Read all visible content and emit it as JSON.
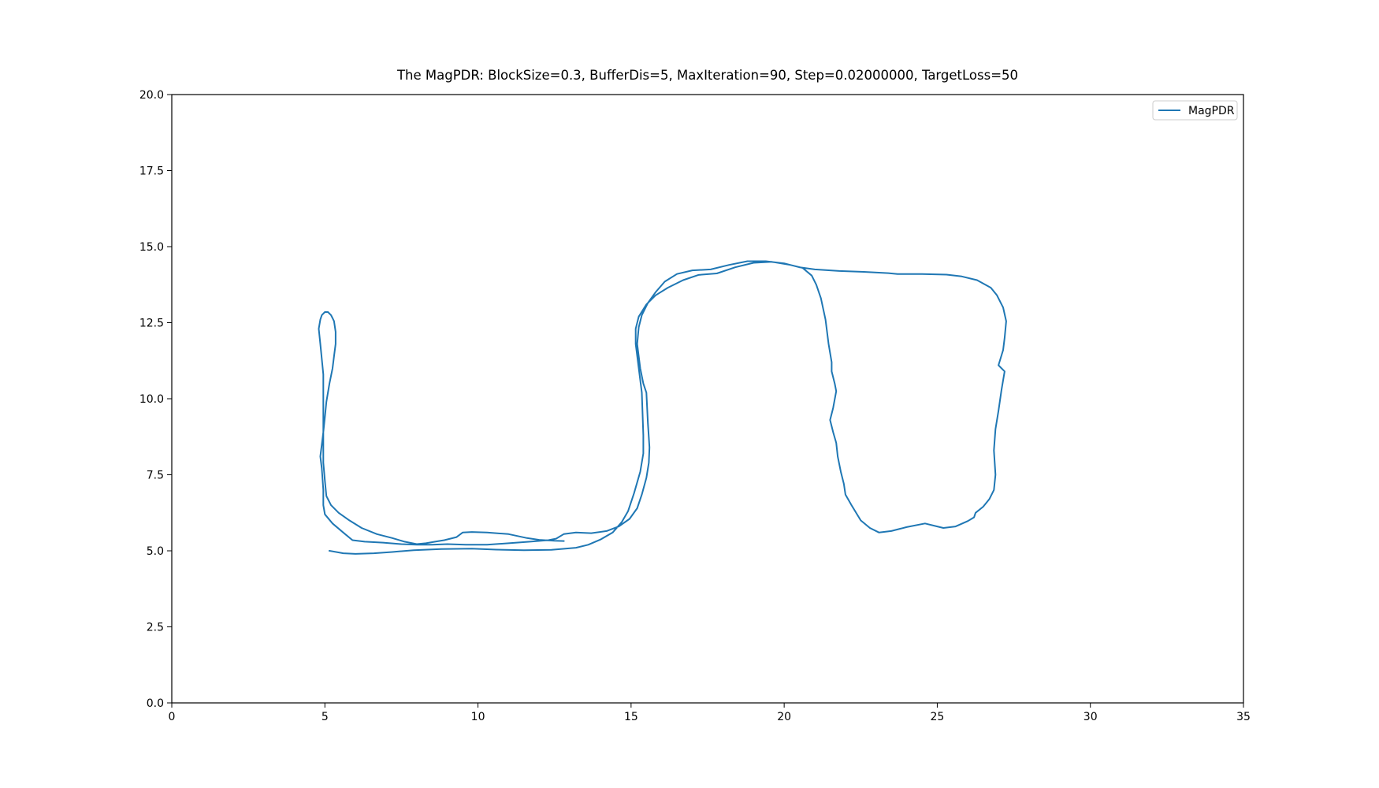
{
  "chart_data": {
    "type": "line",
    "title": "The MagPDR: BlockSize=0.3, BufferDis=5, MaxIteration=90, Step=0.02000000, TargetLoss=50",
    "xlabel": "",
    "ylabel": "",
    "xlim": [
      0,
      35
    ],
    "ylim": [
      0,
      20
    ],
    "xticks": [
      "0",
      "5",
      "10",
      "15",
      "20",
      "25",
      "30",
      "35"
    ],
    "yticks": [
      "0.0",
      "2.5",
      "5.0",
      "7.5",
      "10.0",
      "12.5",
      "15.0",
      "17.5",
      "20.0"
    ],
    "grid": false,
    "legend_position": "top-right",
    "series": [
      {
        "name": "MagPDR",
        "color": "#1f77b4",
        "points": [
          [
            5.15,
            5.0
          ],
          [
            5.6,
            4.92
          ],
          [
            6.0,
            4.9
          ],
          [
            6.6,
            4.92
          ],
          [
            7.2,
            4.96
          ],
          [
            7.9,
            5.02
          ],
          [
            8.8,
            5.06
          ],
          [
            9.8,
            5.07
          ],
          [
            10.6,
            5.04
          ],
          [
            11.5,
            5.02
          ],
          [
            12.4,
            5.03
          ],
          [
            13.2,
            5.1
          ],
          [
            13.6,
            5.2
          ],
          [
            14.0,
            5.37
          ],
          [
            14.4,
            5.6
          ],
          [
            14.7,
            5.95
          ],
          [
            14.9,
            6.3
          ],
          [
            15.1,
            6.9
          ],
          [
            15.3,
            7.6
          ],
          [
            15.4,
            8.2
          ],
          [
            15.4,
            8.8
          ],
          [
            15.35,
            10.2
          ],
          [
            15.25,
            11.0
          ],
          [
            15.15,
            11.8
          ],
          [
            15.15,
            12.3
          ],
          [
            15.25,
            12.7
          ],
          [
            15.5,
            13.1
          ],
          [
            15.8,
            13.4
          ],
          [
            16.2,
            13.65
          ],
          [
            16.7,
            13.9
          ],
          [
            17.2,
            14.07
          ],
          [
            17.8,
            14.12
          ],
          [
            18.4,
            14.32
          ],
          [
            19.0,
            14.47
          ],
          [
            19.6,
            14.5
          ],
          [
            20.2,
            14.4
          ],
          [
            20.6,
            14.3
          ],
          [
            20.9,
            14.05
          ],
          [
            21.05,
            13.75
          ],
          [
            21.2,
            13.3
          ],
          [
            21.35,
            12.6
          ],
          [
            21.45,
            11.8
          ],
          [
            21.55,
            11.2
          ],
          [
            21.55,
            10.9
          ],
          [
            21.65,
            10.5
          ],
          [
            21.7,
            10.25
          ],
          [
            21.6,
            9.7
          ],
          [
            21.5,
            9.3
          ],
          [
            21.6,
            8.9
          ],
          [
            21.7,
            8.55
          ],
          [
            21.75,
            8.1
          ],
          [
            21.85,
            7.6
          ],
          [
            21.95,
            7.2
          ],
          [
            22.0,
            6.85
          ],
          [
            22.2,
            6.5
          ],
          [
            22.5,
            6.0
          ],
          [
            22.8,
            5.75
          ],
          [
            23.1,
            5.6
          ],
          [
            23.5,
            5.65
          ],
          [
            24.0,
            5.78
          ],
          [
            24.6,
            5.9
          ],
          [
            25.0,
            5.8
          ],
          [
            25.2,
            5.75
          ],
          [
            25.6,
            5.8
          ],
          [
            26.0,
            5.98
          ],
          [
            26.2,
            6.1
          ],
          [
            26.25,
            6.25
          ],
          [
            26.5,
            6.45
          ],
          [
            26.7,
            6.7
          ],
          [
            26.85,
            7.0
          ],
          [
            26.9,
            7.5
          ],
          [
            26.85,
            8.3
          ],
          [
            26.9,
            9.0
          ],
          [
            27.0,
            9.6
          ],
          [
            27.1,
            10.3
          ],
          [
            27.2,
            10.9
          ],
          [
            27.0,
            11.1
          ],
          [
            27.15,
            11.6
          ],
          [
            27.2,
            12.0
          ],
          [
            27.25,
            12.55
          ],
          [
            27.15,
            13.0
          ],
          [
            26.95,
            13.4
          ],
          [
            26.75,
            13.65
          ],
          [
            26.3,
            13.9
          ],
          [
            25.8,
            14.02
          ],
          [
            25.3,
            14.08
          ],
          [
            24.5,
            14.1
          ],
          [
            23.7,
            14.1
          ],
          [
            23.4,
            14.13
          ],
          [
            22.6,
            14.17
          ],
          [
            21.8,
            14.2
          ],
          [
            21.0,
            14.25
          ],
          [
            20.5,
            14.32
          ],
          [
            20.0,
            14.45
          ],
          [
            19.4,
            14.52
          ],
          [
            18.8,
            14.52
          ],
          [
            18.2,
            14.4
          ],
          [
            17.6,
            14.25
          ],
          [
            17.0,
            14.22
          ],
          [
            16.5,
            14.1
          ],
          [
            16.1,
            13.85
          ],
          [
            15.8,
            13.5
          ],
          [
            15.55,
            13.15
          ],
          [
            15.35,
            12.75
          ],
          [
            15.25,
            12.35
          ],
          [
            15.2,
            11.8
          ],
          [
            15.3,
            11.0
          ],
          [
            15.4,
            10.5
          ],
          [
            15.5,
            10.2
          ],
          [
            15.55,
            9.2
          ],
          [
            15.6,
            8.4
          ],
          [
            15.58,
            7.9
          ],
          [
            15.5,
            7.4
          ],
          [
            15.35,
            6.85
          ],
          [
            15.2,
            6.4
          ],
          [
            14.95,
            6.05
          ],
          [
            14.6,
            5.8
          ],
          [
            14.2,
            5.65
          ],
          [
            13.7,
            5.58
          ],
          [
            13.2,
            5.6
          ],
          [
            12.8,
            5.55
          ],
          [
            12.55,
            5.4
          ],
          [
            12.3,
            5.35
          ],
          [
            11.7,
            5.3
          ],
          [
            11.0,
            5.25
          ],
          [
            10.3,
            5.2
          ],
          [
            9.6,
            5.2
          ],
          [
            9.0,
            5.22
          ],
          [
            8.5,
            5.2
          ],
          [
            8.0,
            5.2
          ],
          [
            7.5,
            5.22
          ],
          [
            6.9,
            5.27
          ],
          [
            6.3,
            5.3
          ],
          [
            5.9,
            5.35
          ],
          [
            5.6,
            5.6
          ],
          [
            5.25,
            5.9
          ],
          [
            5.0,
            6.2
          ],
          [
            4.95,
            6.5
          ],
          [
            4.95,
            7.0
          ],
          [
            4.9,
            7.7
          ],
          [
            4.85,
            8.1
          ],
          [
            4.95,
            8.9
          ],
          [
            5.0,
            9.4
          ],
          [
            5.05,
            9.9
          ],
          [
            5.15,
            10.5
          ],
          [
            5.25,
            11.0
          ],
          [
            5.3,
            11.4
          ],
          [
            5.35,
            11.8
          ],
          [
            5.35,
            12.2
          ],
          [
            5.3,
            12.55
          ],
          [
            5.25,
            12.65
          ],
          [
            5.2,
            12.75
          ],
          [
            5.1,
            12.85
          ],
          [
            5.0,
            12.85
          ],
          [
            4.9,
            12.75
          ],
          [
            4.85,
            12.6
          ],
          [
            4.8,
            12.3
          ],
          [
            4.85,
            11.8
          ],
          [
            4.9,
            11.3
          ],
          [
            4.95,
            10.8
          ],
          [
            4.95,
            10.4
          ],
          [
            4.95,
            9.8
          ],
          [
            4.95,
            9.1
          ],
          [
            4.95,
            8.5
          ],
          [
            4.95,
            7.9
          ],
          [
            5.0,
            7.3
          ],
          [
            5.05,
            6.8
          ],
          [
            5.2,
            6.5
          ],
          [
            5.45,
            6.25
          ],
          [
            5.8,
            6.0
          ],
          [
            6.2,
            5.75
          ],
          [
            6.7,
            5.55
          ],
          [
            7.2,
            5.42
          ],
          [
            7.6,
            5.3
          ],
          [
            8.0,
            5.22
          ],
          [
            8.3,
            5.25
          ],
          [
            8.6,
            5.3
          ],
          [
            8.9,
            5.35
          ],
          [
            9.3,
            5.45
          ],
          [
            9.5,
            5.6
          ],
          [
            9.8,
            5.62
          ],
          [
            10.3,
            5.6
          ],
          [
            11.0,
            5.55
          ],
          [
            11.6,
            5.42
          ],
          [
            12.0,
            5.36
          ],
          [
            12.5,
            5.33
          ],
          [
            12.8,
            5.32
          ]
        ]
      }
    ]
  }
}
